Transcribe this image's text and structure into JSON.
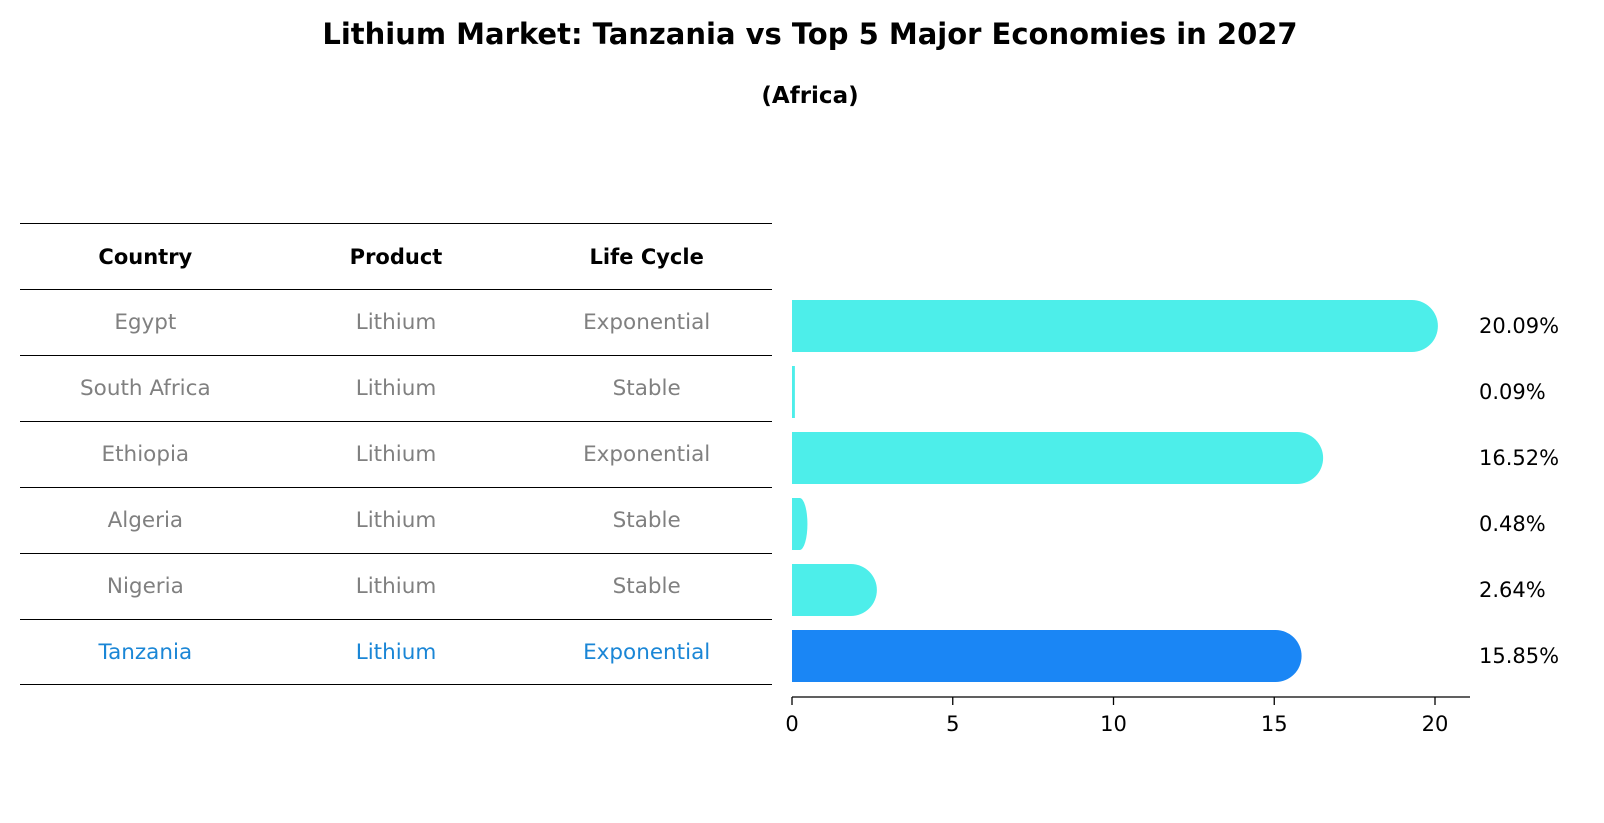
{
  "title": "Lithium Market: Tanzania vs Top 5 Major Economies in 2027",
  "subtitle": "(Africa)",
  "table": {
    "headers": [
      "Country",
      "Product",
      "Life Cycle"
    ],
    "rows": [
      [
        "Egypt",
        "Lithium",
        "Exponential"
      ],
      [
        "South Africa",
        "Lithium",
        "Stable"
      ],
      [
        "Ethiopia",
        "Lithium",
        "Exponential"
      ],
      [
        "Algeria",
        "Lithium",
        "Stable"
      ],
      [
        "Nigeria",
        "Lithium",
        "Stable"
      ],
      [
        "Tanzania",
        "Lithium",
        "Exponential"
      ]
    ],
    "highlight_row": 5
  },
  "chart_data": {
    "type": "bar",
    "orientation": "horizontal",
    "categories": [
      "Egypt",
      "South Africa",
      "Ethiopia",
      "Algeria",
      "Nigeria",
      "Tanzania"
    ],
    "values": [
      20.09,
      0.09,
      16.52,
      0.48,
      2.64,
      15.85
    ],
    "value_labels": [
      "20.09%",
      "0.09%",
      "16.52%",
      "0.48%",
      "2.64%",
      "15.85%"
    ],
    "xticks": [
      0,
      5,
      10,
      15,
      20
    ],
    "xlim": [
      0,
      21
    ],
    "colors": {
      "default": "#4deeea",
      "highlight": "#1a86f5"
    },
    "highlight_index": 5
  }
}
